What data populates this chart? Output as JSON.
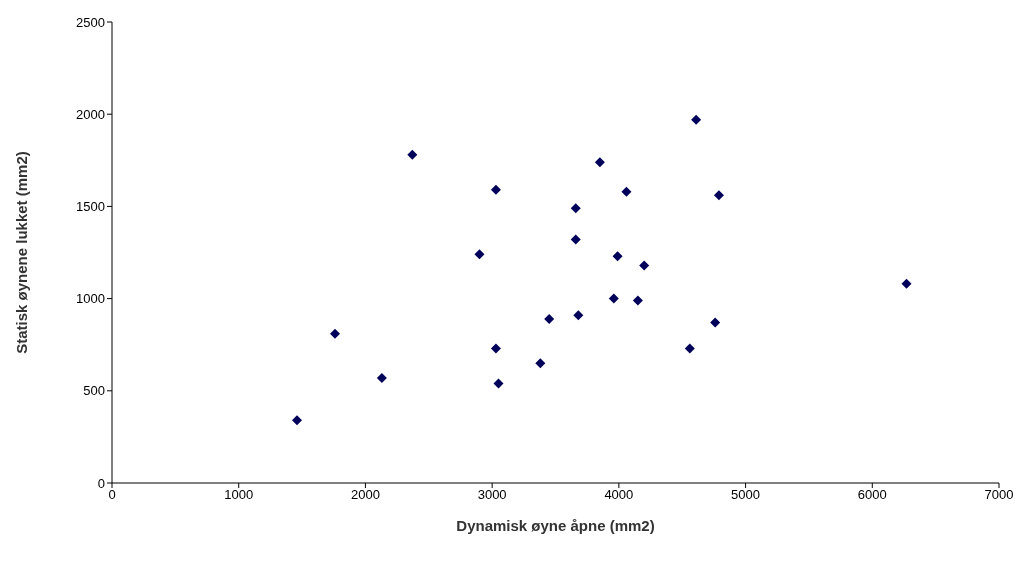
{
  "chart_data": {
    "type": "scatter",
    "xlabel": "Dynamisk øyne åpne (mm2)",
    "ylabel": "Statisk øynene lukket (mm2)",
    "marker": "diamond",
    "grid": false,
    "legend": false,
    "xlim": [
      0,
      7000
    ],
    "xticks": [
      0,
      1000,
      2000,
      3000,
      4000,
      5000,
      6000,
      7000
    ],
    "ylim": [
      0,
      2500
    ],
    "yticks": [
      0,
      500,
      1000,
      1500,
      2000,
      2500
    ],
    "series": [
      {
        "color": "#00005a",
        "x": [
          1460,
          1760,
          2130,
          2370,
          2900,
          3030,
          3030,
          3050,
          3380,
          3450,
          3660,
          3660,
          3680,
          3850,
          4060,
          3990,
          4200,
          3960,
          4150,
          4610,
          4790,
          4760,
          4560,
          6270
        ],
        "values": [
          340,
          810,
          570,
          1780,
          1240,
          1590,
          730,
          540,
          650,
          890,
          1490,
          1320,
          910,
          1740,
          1580,
          1230,
          1180,
          1000,
          990,
          1970,
          1560,
          870,
          730,
          1080
        ]
      }
    ]
  }
}
